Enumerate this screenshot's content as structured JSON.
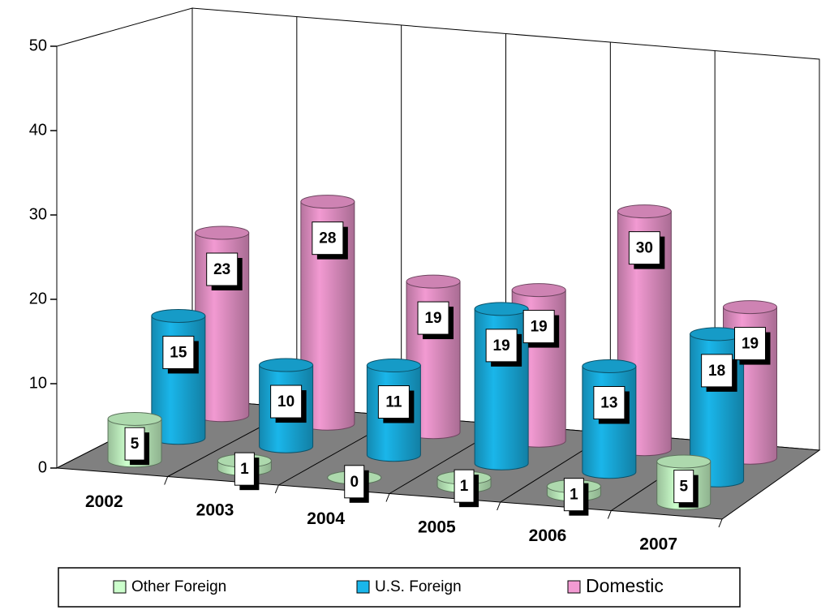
{
  "chart_data": {
    "type": "bar3d",
    "categories": [
      "2002",
      "2003",
      "2004",
      "2005",
      "2006",
      "2007"
    ],
    "series": [
      {
        "name": "Other Foreign",
        "color": "#ccffcc",
        "values": [
          5,
          1,
          0,
          1,
          1,
          5
        ]
      },
      {
        "name": "U.S. Foreign",
        "color": "#1ab6ea",
        "values": [
          15,
          10,
          11,
          19,
          13,
          18
        ]
      },
      {
        "name": "Domestic",
        "color": "#f29ad2",
        "values": [
          23,
          28,
          19,
          19,
          30,
          19
        ]
      }
    ],
    "ylim": [
      0,
      50
    ],
    "yticks": [
      0,
      10,
      20,
      30,
      40,
      50
    ]
  }
}
